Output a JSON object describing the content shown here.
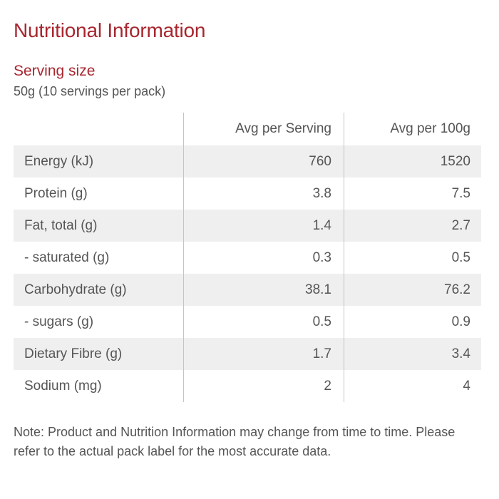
{
  "title": "Nutritional Information",
  "serving": {
    "heading": "Serving size",
    "value": "50g (10 servings per pack)"
  },
  "table": {
    "headers": [
      "",
      "Avg per Serving",
      "Avg per 100g"
    ],
    "rows": [
      {
        "label": "Energy (kJ)",
        "per_serving": "760",
        "per_100g": "1520"
      },
      {
        "label": "Protein (g)",
        "per_serving": "3.8",
        "per_100g": "7.5"
      },
      {
        "label": "Fat, total (g)",
        "per_serving": "1.4",
        "per_100g": "2.7"
      },
      {
        "label": "- saturated (g)",
        "per_serving": "0.3",
        "per_100g": "0.5"
      },
      {
        "label": "Carbohydrate (g)",
        "per_serving": "38.1",
        "per_100g": "76.2"
      },
      {
        "label": "- sugars (g)",
        "per_serving": "0.5",
        "per_100g": "0.9"
      },
      {
        "label": "Dietary Fibre (g)",
        "per_serving": "1.7",
        "per_100g": "3.4"
      },
      {
        "label": "Sodium (mg)",
        "per_serving": "2",
        "per_100g": "4"
      }
    ]
  },
  "note": "Note: Product and Nutrition Information may change from time to time. Please refer to the actual pack label for the most accurate data.",
  "colors": {
    "accent": "#a8262f",
    "text": "#555555",
    "row_shade": "#efefef",
    "divider": "#c4c4c4"
  }
}
